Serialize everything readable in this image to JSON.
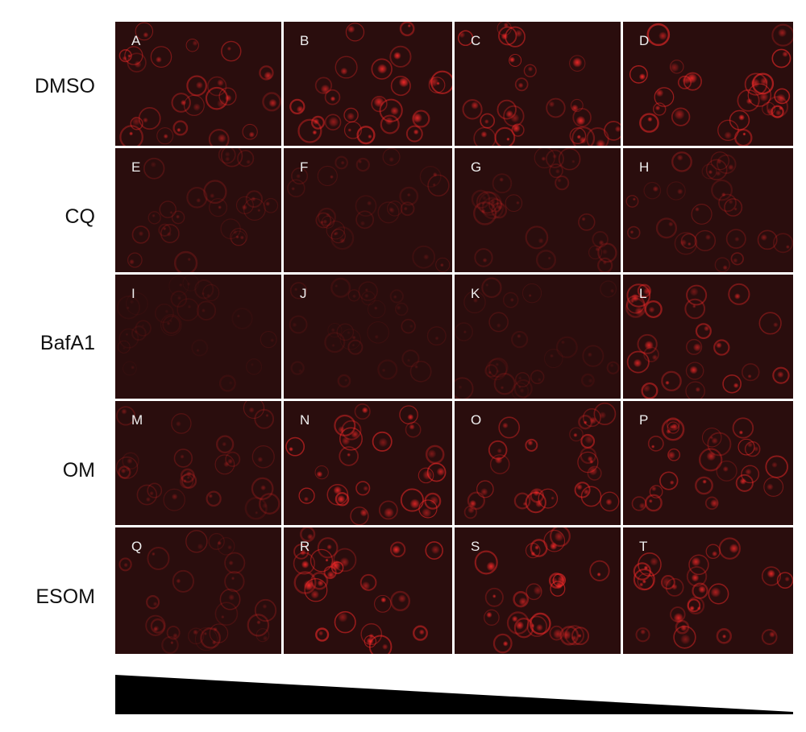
{
  "row_labels": [
    "DMSO",
    "CQ",
    "BafA1",
    "OM",
    "ESOM"
  ],
  "panels": [
    {
      "letter": "A",
      "level": 0.8
    },
    {
      "letter": "B",
      "level": 0.95
    },
    {
      "letter": "C",
      "level": 0.9
    },
    {
      "letter": "D",
      "level": 0.95
    },
    {
      "letter": "E",
      "level": 0.35
    },
    {
      "letter": "F",
      "level": 0.35
    },
    {
      "letter": "G",
      "level": 0.35
    },
    {
      "letter": "H",
      "level": 0.45
    },
    {
      "letter": "I",
      "level": 0.15
    },
    {
      "letter": "J",
      "level": 0.2
    },
    {
      "letter": "K",
      "level": 0.25
    },
    {
      "letter": "L",
      "level": 0.8
    },
    {
      "letter": "M",
      "level": 0.4
    },
    {
      "letter": "N",
      "level": 0.9
    },
    {
      "letter": "O",
      "level": 0.8
    },
    {
      "letter": "P",
      "level": 0.8
    },
    {
      "letter": "Q",
      "level": 0.4
    },
    {
      "letter": "R",
      "level": 0.95
    },
    {
      "letter": "S",
      "level": 0.9
    },
    {
      "letter": "T",
      "level": 0.9
    }
  ],
  "colors": {
    "background": "#2a0d0d",
    "signal": "#ff2a2a",
    "wedge": "#000000",
    "label_text": "#111111",
    "panel_letter": "#eeeeee"
  }
}
